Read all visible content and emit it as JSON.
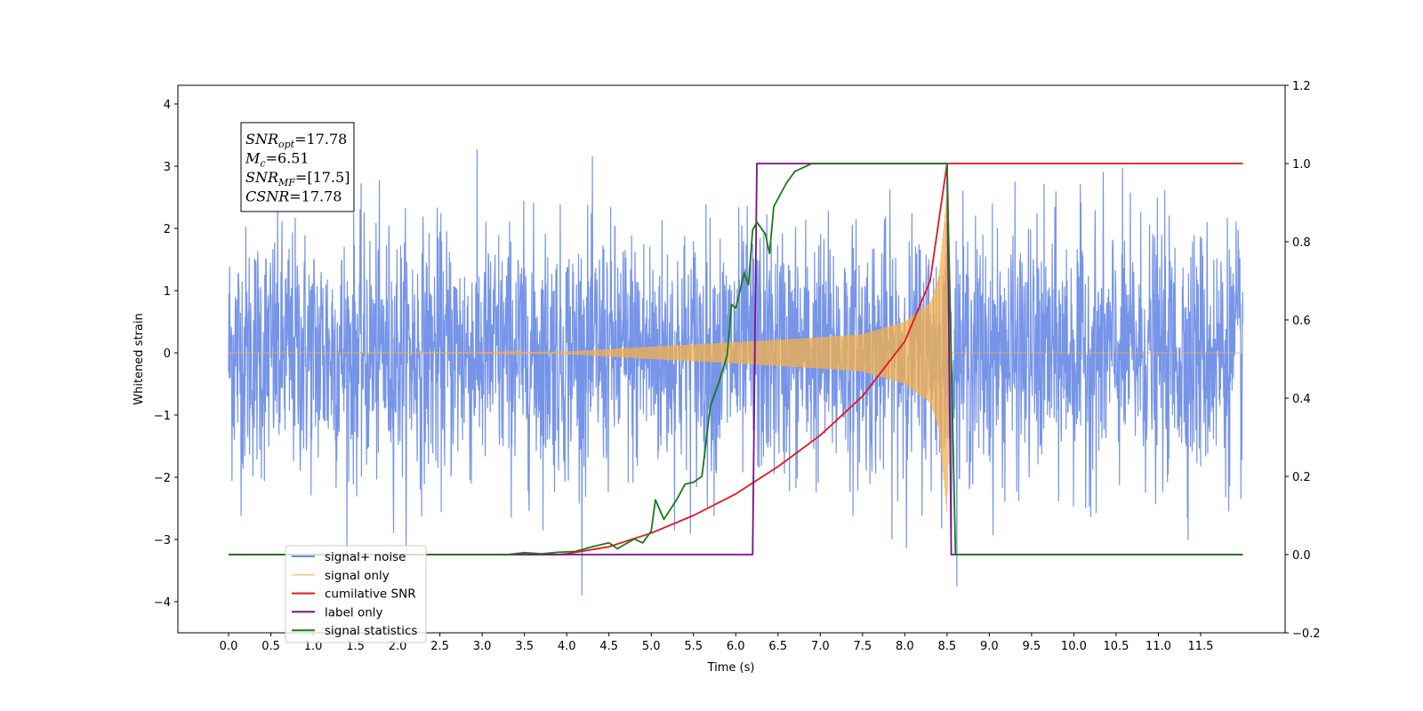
{
  "chart_data": {
    "type": "line",
    "xlabel": "Time (s)",
    "ylabel": "Whitened strain",
    "xlim": [
      -0.6,
      12.5
    ],
    "ylim": [
      -4.5,
      4.3
    ],
    "ylim_right": [
      -0.2,
      1.2
    ],
    "x_ticks": [
      "0.0",
      "0.5",
      "1.0",
      "1.5",
      "2.0",
      "2.5",
      "3.0",
      "3.5",
      "4.0",
      "4.5",
      "5.0",
      "5.5",
      "6.0",
      "6.5",
      "7.0",
      "7.5",
      "8.0",
      "8.5",
      "9.0",
      "9.5",
      "10.0",
      "10.5",
      "11.0",
      "11.5"
    ],
    "y_ticks_left": [
      "4",
      "3",
      "2",
      "1",
      "0",
      "−1",
      "−2",
      "−3",
      "−4"
    ],
    "y_ticks_right": [
      "1.2",
      "1.0",
      "0.8",
      "0.6",
      "0.4",
      "0.2",
      "0.0",
      "−0.2"
    ],
    "legend_position": "lower-left",
    "annotation": {
      "lines": [
        {
          "symbol": "SNR",
          "sub": "opt",
          "value": "=17.78"
        },
        {
          "symbol": "M",
          "sub": "c",
          "value": "=6.51"
        },
        {
          "symbol": "SNR",
          "sub": "MF",
          "value": "=[17.5]"
        },
        {
          "symbol": "CSNR",
          "sub": "",
          "value": "=17.78"
        }
      ]
    },
    "series": [
      {
        "name": "signal+ noise",
        "color": "#6a8be6",
        "axis": "left",
        "kind": "noise",
        "x_range": [
          0,
          12
        ],
        "std": 1.0,
        "max_abs": 3.9
      },
      {
        "name": "signal only",
        "color": "#f5b04a",
        "axis": "left",
        "kind": "chirp",
        "merger_time": 8.5,
        "envelope": [
          [
            0,
            0
          ],
          [
            3.0,
            0.005
          ],
          [
            4.0,
            0.02
          ],
          [
            5.0,
            0.1
          ],
          [
            6.0,
            0.17
          ],
          [
            7.0,
            0.25
          ],
          [
            7.5,
            0.3
          ],
          [
            8.0,
            0.5
          ],
          [
            8.3,
            0.8
          ],
          [
            8.4,
            1.2
          ],
          [
            8.5,
            2.6
          ],
          [
            8.55,
            0
          ]
        ]
      },
      {
        "name": "cumilative SNR",
        "color": "#e8141c",
        "axis": "right",
        "points": [
          [
            0,
            0
          ],
          [
            3.9,
            0
          ],
          [
            4.0,
            0.002
          ],
          [
            4.5,
            0.02
          ],
          [
            5.0,
            0.055
          ],
          [
            5.5,
            0.1
          ],
          [
            6.0,
            0.155
          ],
          [
            6.5,
            0.225
          ],
          [
            7.0,
            0.305
          ],
          [
            7.5,
            0.405
          ],
          [
            8.0,
            0.545
          ],
          [
            8.3,
            0.7
          ],
          [
            8.5,
            1.0
          ],
          [
            12,
            1.0
          ]
        ]
      },
      {
        "name": "label only",
        "color": "#7a0e8a",
        "axis": "right",
        "points": [
          [
            0,
            0
          ],
          [
            6.2,
            0
          ],
          [
            6.25,
            1.0
          ],
          [
            8.5,
            1.0
          ],
          [
            8.55,
            0
          ],
          [
            12,
            0
          ]
        ]
      },
      {
        "name": "signal statistics",
        "color": "#1a7a14",
        "axis": "right",
        "points": [
          [
            0,
            0
          ],
          [
            3.3,
            0
          ],
          [
            3.5,
            0.005
          ],
          [
            3.7,
            0.002
          ],
          [
            3.9,
            0.006
          ],
          [
            4.1,
            0.008
          ],
          [
            4.3,
            0.02
          ],
          [
            4.5,
            0.03
          ],
          [
            4.6,
            0.015
          ],
          [
            4.8,
            0.04
          ],
          [
            4.9,
            0.03
          ],
          [
            5.0,
            0.06
          ],
          [
            5.05,
            0.14
          ],
          [
            5.15,
            0.09
          ],
          [
            5.3,
            0.14
          ],
          [
            5.4,
            0.18
          ],
          [
            5.5,
            0.185
          ],
          [
            5.6,
            0.2
          ],
          [
            5.7,
            0.38
          ],
          [
            5.8,
            0.44
          ],
          [
            5.9,
            0.51
          ],
          [
            5.95,
            0.64
          ],
          [
            6.0,
            0.63
          ],
          [
            6.1,
            0.72
          ],
          [
            6.15,
            0.69
          ],
          [
            6.2,
            0.83
          ],
          [
            6.25,
            0.85
          ],
          [
            6.35,
            0.82
          ],
          [
            6.4,
            0.77
          ],
          [
            6.45,
            0.89
          ],
          [
            6.5,
            0.91
          ],
          [
            6.6,
            0.95
          ],
          [
            6.7,
            0.98
          ],
          [
            6.8,
            0.99
          ],
          [
            6.9,
            1.0
          ],
          [
            8.5,
            1.0
          ],
          [
            8.6,
            0
          ],
          [
            12,
            0
          ]
        ]
      }
    ]
  }
}
